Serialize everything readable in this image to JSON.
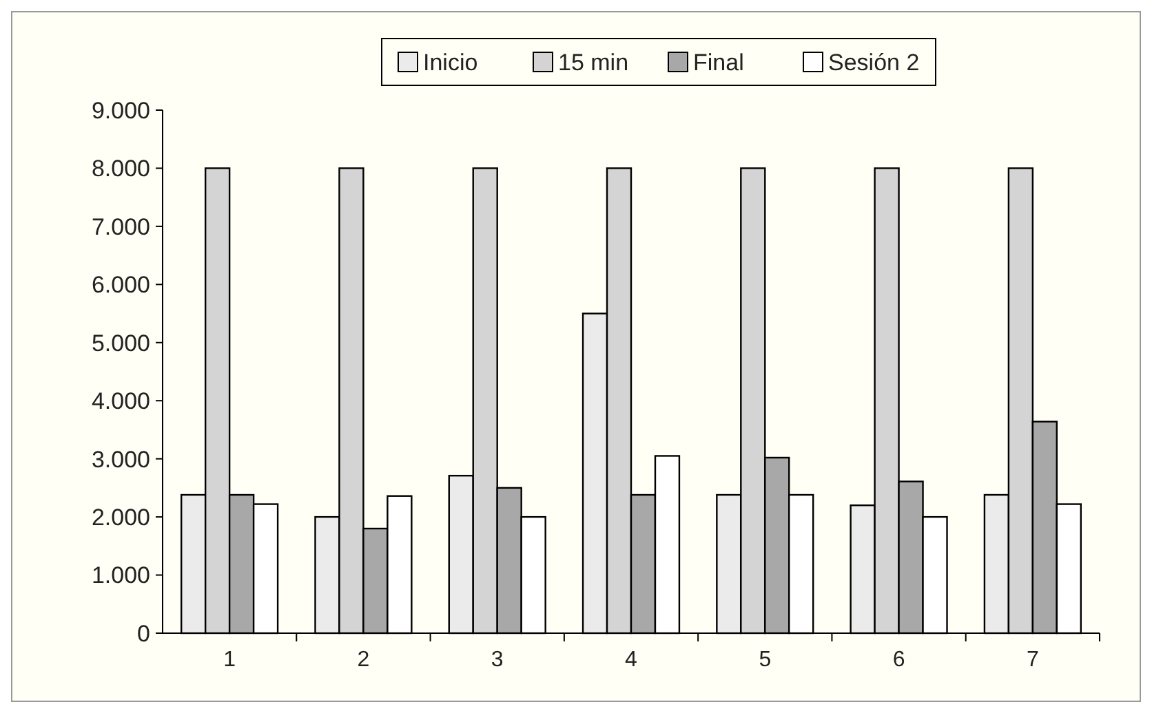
{
  "chart_data": {
    "type": "bar",
    "categories": [
      "1",
      "2",
      "3",
      "4",
      "5",
      "6",
      "7"
    ],
    "series": [
      {
        "name": "Inicio",
        "color": "#ebebeb",
        "values": [
          2380,
          2000,
          2710,
          5500,
          2380,
          2200,
          2380
        ]
      },
      {
        "name": "15 min",
        "color": "#d4d4d4",
        "values": [
          8000,
          8000,
          8000,
          8000,
          8000,
          8000,
          8000
        ]
      },
      {
        "name": "Final",
        "color": "#a8a8a8",
        "values": [
          2380,
          1800,
          2500,
          2380,
          3020,
          2610,
          3640
        ]
      },
      {
        "name": "Sesión 2",
        "color": "#ffffff",
        "values": [
          2220,
          2360,
          2000,
          3050,
          2380,
          2000,
          2220
        ]
      }
    ],
    "ylim": [
      0,
      9000
    ],
    "yticks": [
      0,
      {
        "value": 1000,
        "label": "1.000"
      },
      {
        "value": 2000,
        "label": "2.000"
      },
      {
        "value": 3000,
        "label": "3.000"
      },
      {
        "value": 4000,
        "label": "4.000"
      },
      {
        "value": 5000,
        "label": "5.000"
      },
      {
        "value": 6000,
        "label": "6.000"
      },
      {
        "value": 7000,
        "label": "7.000"
      },
      {
        "value": 8000,
        "label": "8.000"
      },
      {
        "value": 9000,
        "label": "9.000"
      }
    ],
    "grid": false,
    "legend": "top"
  }
}
